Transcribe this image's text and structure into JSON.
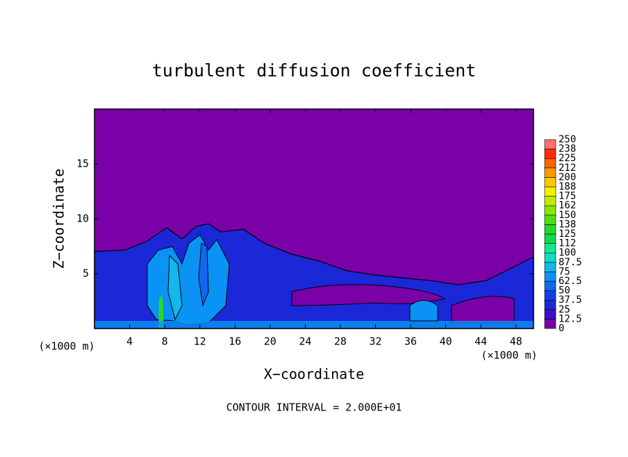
{
  "chart_data": {
    "type": "contour",
    "title": "turbulent diffusion coefficient",
    "x_label": "X−coordinate",
    "y_label": "Z−coordinate",
    "x_unit_left": "(×1000 m)",
    "x_unit_right": "(×1000 m)",
    "footnote": "CONTOUR INTERVAL = 2.000E+01",
    "xlim": [
      0,
      50
    ],
    "xticks": [
      4,
      8,
      12,
      16,
      20,
      24,
      28,
      32,
      36,
      40,
      44,
      48
    ],
    "ylim": [
      0,
      20
    ],
    "yticks": [
      5,
      10,
      15
    ],
    "colorbar_levels": [
      0,
      12.5,
      25,
      37.5,
      50,
      62.5,
      75,
      87.5,
      100,
      112,
      125,
      138,
      150,
      162,
      175,
      188,
      200,
      212,
      225,
      238,
      250
    ],
    "colorbar_colors": [
      "#7a00a8",
      "#3c10c8",
      "#1a28d8",
      "#1040e8",
      "#1068f0",
      "#0a92f4",
      "#10b8ee",
      "#10dcc4",
      "#10e890",
      "#10dc50",
      "#28d828",
      "#50e010",
      "#88e800",
      "#c0ec00",
      "#f4f000",
      "#ffc800",
      "#ff9800",
      "#ff6400",
      "#ff2c00",
      "#ff7070"
    ]
  }
}
